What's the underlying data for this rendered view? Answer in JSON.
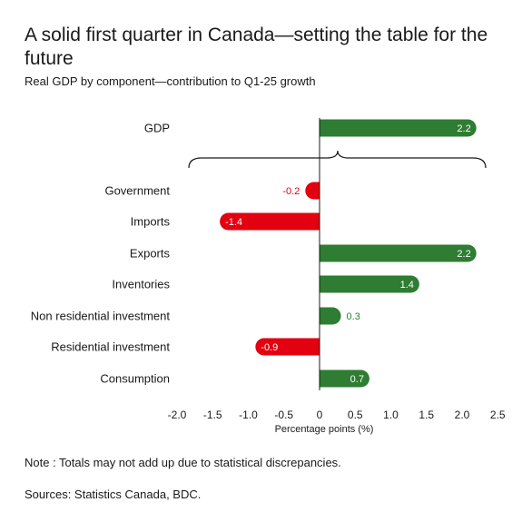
{
  "title": "A solid first quarter in Canada—setting the table for the future",
  "subtitle": "Real GDP by component—contribution to Q1-25 growth",
  "note": "Note : Totals may not add up due to statistical discrepancies.",
  "sources": "Sources: Statistics Canada, BDC.",
  "colors": {
    "positive": "#2e7d32",
    "negative": "#e3000f",
    "text": "#1a1a1a"
  },
  "chart_data": {
    "type": "bar",
    "orientation": "horizontal",
    "categories": [
      "GDP",
      "Government",
      "Imports",
      "Exports",
      "Inventories",
      "Non residential investment",
      "Residential investment",
      "Consumption"
    ],
    "values": [
      2.2,
      -0.2,
      -1.4,
      2.2,
      1.4,
      0.3,
      -0.9,
      0.7
    ],
    "value_labels": [
      "2.2",
      "-0.2",
      "-1.4",
      "2.2",
      "1.4",
      "0.3",
      "-0.9",
      "0.7"
    ],
    "xlabel": "Percentage points (%)",
    "xlim": [
      -2.0,
      2.5
    ],
    "xticks": [
      -2.0,
      -1.5,
      -1.0,
      -0.5,
      0,
      0.5,
      1.0,
      1.5,
      2.0,
      2.5
    ],
    "xtick_labels": [
      "-2.0",
      "-1.5",
      "-1.0",
      "-0.5",
      "0",
      "0.5",
      "1.0",
      "1.5",
      "2.0",
      "2.5"
    ],
    "grid": false,
    "annotation": "brace grouping components under GDP"
  }
}
